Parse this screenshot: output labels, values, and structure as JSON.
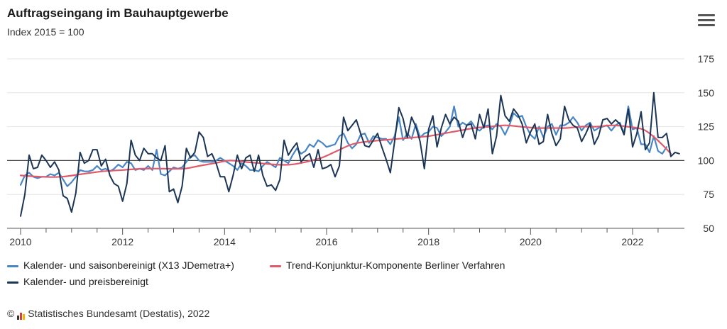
{
  "chart_data": {
    "type": "line",
    "title": "Auftragseingang im Bauhauptgewerbe",
    "subtitle": "Index 2015 = 100",
    "xlabel": "",
    "ylabel": "",
    "x_ticks": [
      "2010",
      "2012",
      "2014",
      "2016",
      "2018",
      "2020",
      "2022"
    ],
    "y_ticks": [
      "175",
      "150",
      "125",
      "100",
      "75",
      "50"
    ],
    "ylim": [
      50,
      175
    ],
    "xlim": [
      2010.0,
      2022.9
    ],
    "reference_line": 100,
    "grid": true,
    "legend_position": "bottom-left",
    "series": [
      {
        "name": "Kalender- und saisonbereinigt (X13 JDemetra+)",
        "color": "#4a86c5",
        "x_start": 2010.0,
        "step": 0.0833333,
        "values": [
          82,
          89,
          91,
          88,
          87,
          88,
          88,
          90,
          89,
          91,
          86,
          81,
          84,
          88,
          93,
          92,
          92,
          93,
          96,
          93,
          94,
          92,
          94,
          97,
          95,
          99,
          98,
          93,
          94,
          93,
          96,
          93,
          108,
          90,
          89,
          92,
          95,
          94,
          95,
          99,
          103,
          104,
          100,
          99,
          99,
          99,
          100,
          102,
          100,
          98,
          96,
          93,
          98,
          96,
          93,
          93,
          92,
          96,
          99,
          97,
          95,
          102,
          100,
          98,
          104,
          109,
          105,
          107,
          112,
          110,
          115,
          113,
          110,
          111,
          112,
          118,
          120,
          113,
          109,
          112,
          119,
          120,
          113,
          118,
          117,
          116,
          116,
          112,
          118,
          132,
          115,
          120,
          116,
          127,
          117,
          120,
          121,
          125,
          124,
          118,
          121,
          125,
          140,
          125,
          128,
          126,
          129,
          124,
          122,
          125,
          126,
          123,
          127,
          125,
          119,
          126,
          135,
          132,
          133,
          125,
          119,
          116,
          125,
          117,
          125,
          127,
          119,
          126,
          126,
          128,
          132,
          128,
          122,
          126,
          128,
          122,
          124,
          125,
          126,
          122,
          126,
          128,
          120,
          140,
          123,
          124,
          112,
          112,
          106,
          118,
          107,
          105,
          110
        ]
      },
      {
        "name": "Kalender- und preisbereinigt",
        "color": "#1c3555",
        "x_start": 2010.0,
        "step": 0.0833333,
        "values": [
          59,
          75,
          104,
          94,
          95,
          104,
          100,
          95,
          99,
          93,
          74,
          72,
          62,
          76,
          106,
          98,
          100,
          108,
          108,
          96,
          101,
          89,
          83,
          81,
          70,
          83,
          115,
          104,
          100,
          109,
          105,
          105,
          102,
          100,
          111,
          77,
          79,
          69,
          81,
          109,
          102,
          106,
          121,
          117,
          103,
          105,
          98,
          88,
          88,
          77,
          89,
          104,
          94,
          102,
          104,
          92,
          104,
          89,
          81,
          82,
          78,
          86,
          115,
          104,
          109,
          113,
          99,
          103,
          105,
          95,
          108,
          94,
          95,
          97,
          88,
          96,
          132,
          122,
          126,
          130,
          120,
          111,
          110,
          115,
          120,
          110,
          101,
          91,
          114,
          139,
          131,
          117,
          132,
          125,
          114,
          94,
          123,
          133,
          110,
          124,
          134,
          127,
          132,
          129,
          117,
          126,
          127,
          116,
          134,
          124,
          138,
          105,
          118,
          148,
          133,
          129,
          138,
          134,
          127,
          113,
          121,
          127,
          112,
          114,
          134,
          120,
          111,
          116,
          140,
          130,
          126,
          124,
          114,
          120,
          127,
          112,
          118,
          130,
          131,
          127,
          130,
          127,
          119,
          138,
          110,
          120,
          136,
          108,
          113,
          150,
          117,
          117,
          120,
          103,
          106,
          105
        ]
      },
      {
        "name": "Trend-Konjunktur-Komponente Berliner Verfahren",
        "color": "#e05a6a",
        "x": [
          2010.0,
          2010.4,
          2010.8,
          2011.2,
          2011.6,
          2012.0,
          2012.4,
          2012.8,
          2013.2,
          2013.5,
          2013.8,
          2014.1,
          2014.4,
          2014.7,
          2015.0,
          2015.3,
          2015.6,
          2015.9,
          2016.2,
          2016.5,
          2016.8,
          2017.1,
          2017.4,
          2017.7,
          2018.0,
          2018.3,
          2018.6,
          2018.9,
          2019.2,
          2019.5,
          2019.8,
          2020.1,
          2020.4,
          2020.7,
          2021.0,
          2021.3,
          2021.6,
          2021.9,
          2022.2,
          2022.4,
          2022.6,
          2022.75
        ],
        "values": [
          89,
          88,
          88,
          90,
          92,
          93,
          94,
          94,
          94,
          96,
          98,
          100,
          99,
          98,
          97,
          97,
          99,
          102,
          107,
          112,
          114,
          115,
          116,
          117,
          118,
          120,
          122,
          124,
          125,
          126,
          125,
          124,
          124,
          124,
          125,
          125,
          126,
          125,
          123,
          118,
          111,
          105
        ]
      }
    ]
  },
  "menu_icon": "hamburger-menu-icon",
  "legend": {
    "item1": "Kalender- und saisonbereinigt (X13 JDemetra+)",
    "item2": "Trend-Konjunktur-Komponente Berliner Verfahren",
    "item3": "Kalender- und preisbereinigt"
  },
  "credit": {
    "copyright_symbol": "©",
    "text": "Statistisches Bundesamt (Destatis), 2022"
  }
}
